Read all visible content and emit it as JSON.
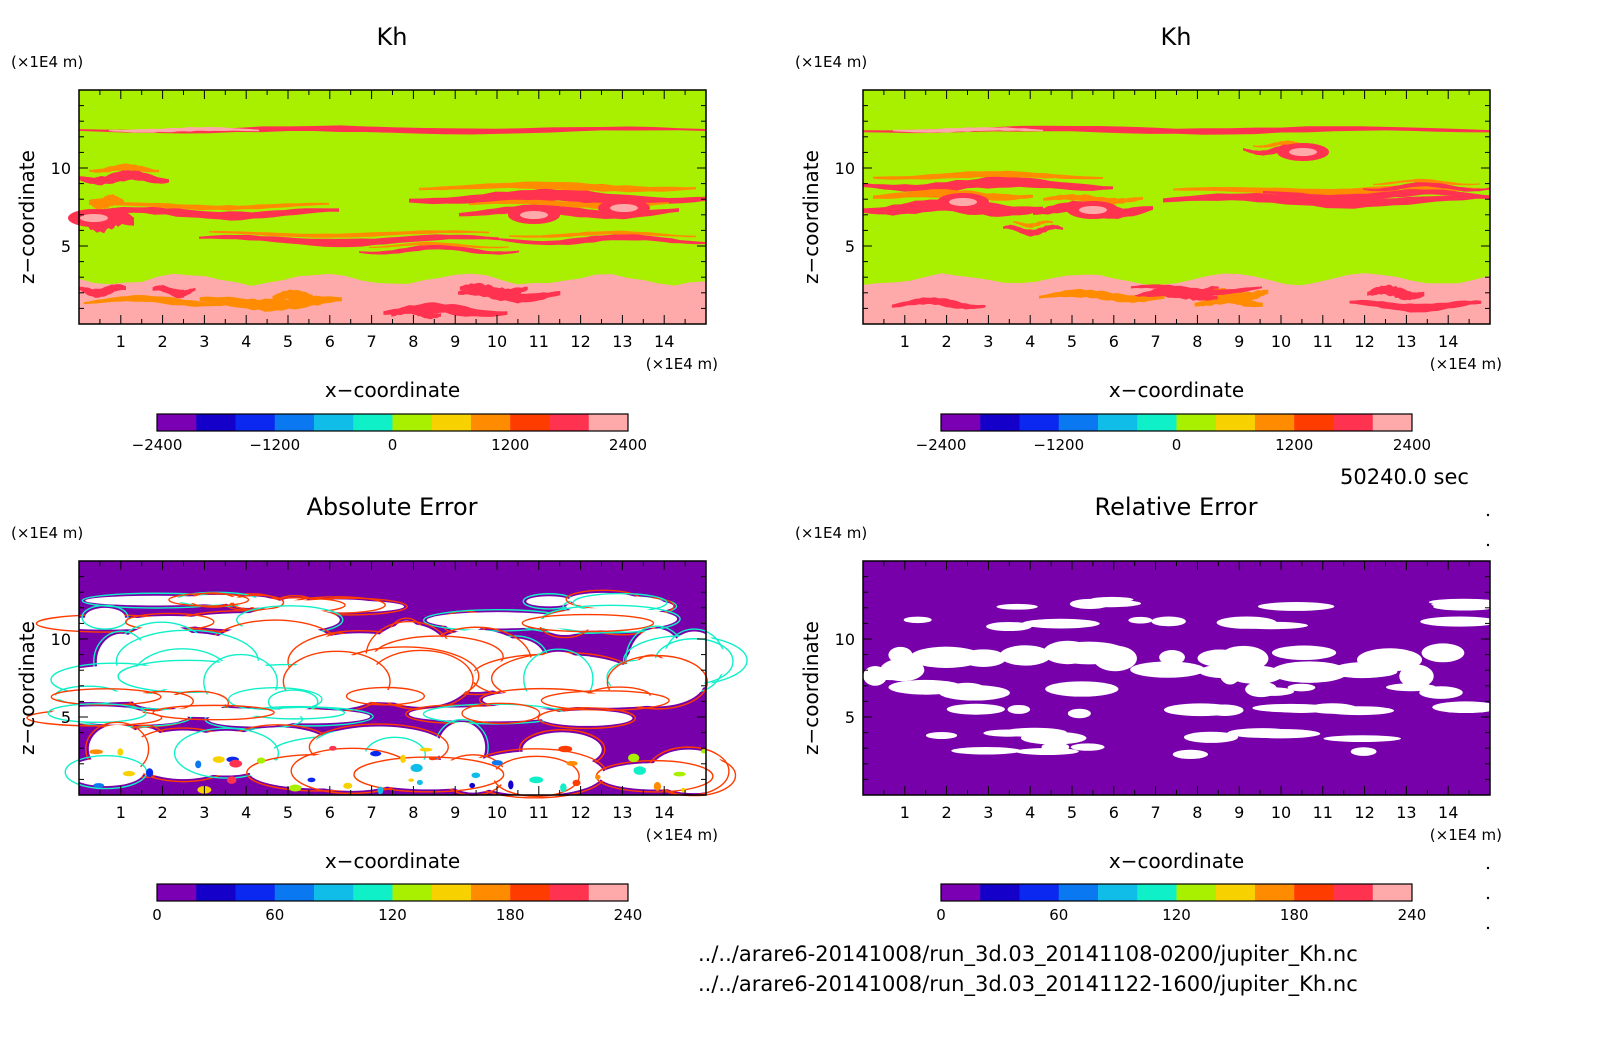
{
  "figure": {
    "time_label": "50240.0 sec",
    "files": [
      "../../arare6-20141008/run_3d.03_20141108-0200/jupiter_Kh.nc",
      "../../arare6-20141008/run_3d.03_20141122-1600/jupiter_Kh.nc"
    ]
  },
  "colors": {
    "levels": [
      "#7b00b4",
      "#1400c8",
      "#0a28f0",
      "#0a78f0",
      "#10bce8",
      "#10f0c8",
      "#a8f000",
      "#f8d200",
      "#ff8c00",
      "#ff3c00",
      "#ff3250",
      "#ffaaaa"
    ],
    "background_value": "#a8f000",
    "error_background": "#7800aa",
    "missing": "#ffffff"
  },
  "chart_data": [
    {
      "id": "panel-kh-1",
      "type": "heatmap",
      "variant": "kh",
      "title": "Kh",
      "xlabel": "x−coordinate",
      "ylabel": "z−coordinate",
      "x_unit": "(×1E4 m)",
      "y_unit": "(×1E4 m)",
      "xlim": [
        0,
        15
      ],
      "ylim": [
        0,
        15
      ],
      "x_ticks": [
        1,
        2,
        3,
        4,
        5,
        6,
        7,
        8,
        9,
        10,
        11,
        12,
        13,
        14
      ],
      "y_ticks": [
        5,
        10
      ],
      "colorbar": {
        "min": -2400,
        "max": 2400,
        "levels": 12,
        "tick_values": [
          -2400,
          -1200,
          0,
          1200,
          2400
        ],
        "tick_labels": [
          "−2400",
          "−1200",
          "0",
          "1200",
          "2400"
        ]
      }
    },
    {
      "id": "panel-kh-2",
      "type": "heatmap",
      "variant": "kh",
      "title": "Kh",
      "xlabel": "x−coordinate",
      "ylabel": "z−coordinate",
      "x_unit": "(×1E4 m)",
      "y_unit": "(×1E4 m)",
      "xlim": [
        0,
        15
      ],
      "ylim": [
        0,
        15
      ],
      "x_ticks": [
        1,
        2,
        3,
        4,
        5,
        6,
        7,
        8,
        9,
        10,
        11,
        12,
        13,
        14
      ],
      "y_ticks": [
        5,
        10
      ],
      "colorbar": {
        "min": -2400,
        "max": 2400,
        "levels": 12,
        "tick_values": [
          -2400,
          -1200,
          0,
          1200,
          2400
        ],
        "tick_labels": [
          "−2400",
          "−1200",
          "0",
          "1200",
          "2400"
        ]
      }
    },
    {
      "id": "panel-abs-error",
      "type": "heatmap",
      "variant": "abs",
      "title": "Absolute Error",
      "xlabel": "x−coordinate",
      "ylabel": "z−coordinate",
      "x_unit": "(×1E4 m)",
      "y_unit": "(×1E4 m)",
      "xlim": [
        0,
        15
      ],
      "ylim": [
        0,
        15
      ],
      "x_ticks": [
        1,
        2,
        3,
        4,
        5,
        6,
        7,
        8,
        9,
        10,
        11,
        12,
        13,
        14
      ],
      "y_ticks": [
        5,
        10
      ],
      "colorbar": {
        "min": 0,
        "max": 240,
        "levels": 12,
        "tick_values": [
          0,
          60,
          120,
          180,
          240
        ],
        "tick_labels": [
          "0",
          "60",
          "120",
          "180",
          "240"
        ]
      }
    },
    {
      "id": "panel-rel-error",
      "type": "heatmap",
      "variant": "rel",
      "title": "Relative Error",
      "xlabel": "x−coordinate",
      "ylabel": "z−coordinate",
      "x_unit": "(×1E4 m)",
      "y_unit": "(×1E4 m)",
      "xlim": [
        0,
        15
      ],
      "ylim": [
        0,
        15
      ],
      "x_ticks": [
        1,
        2,
        3,
        4,
        5,
        6,
        7,
        8,
        9,
        10,
        11,
        12,
        13,
        14
      ],
      "y_ticks": [
        5,
        10
      ],
      "colorbar": {
        "min": 0,
        "max": 240,
        "levels": 12,
        "tick_values": [
          0,
          60,
          120,
          180,
          240
        ],
        "tick_labels": [
          "0",
          "60",
          "120",
          "180",
          "240"
        ]
      }
    }
  ]
}
